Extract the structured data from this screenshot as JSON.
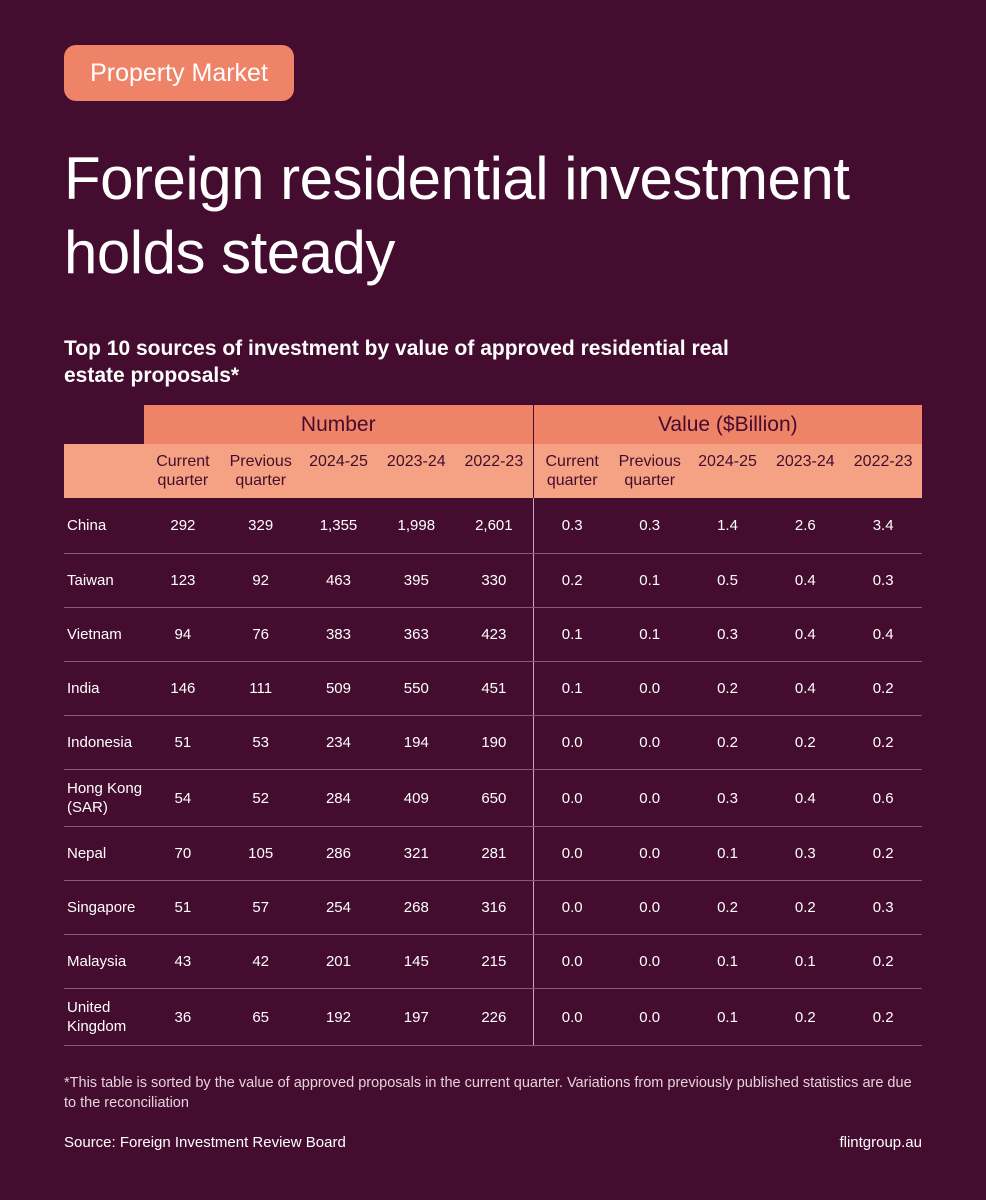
{
  "tag": "Property Market",
  "title": "Foreign residential investment holds steady",
  "subtitle": "Top 10 sources of investment by value of approved residential real estate proposals*",
  "footnote": "*This table is sorted by the value of approved proposals in the current quarter. Variations from previously published statistics are due to the reconciliation",
  "source": "Source: Foreign Investment Review Board",
  "website": "flintgroup.au",
  "colors": {
    "background": "#440c2e",
    "header_group": "#ee8367",
    "header_sub": "#f4a283",
    "tag": "#ee8367"
  },
  "chart_data": {
    "type": "table",
    "groups": [
      {
        "label": "Number",
        "columns": [
          "Current quarter",
          "Previous quarter",
          "2024-25",
          "2023-24",
          "2022-23"
        ]
      },
      {
        "label": "Value ($Billion)",
        "columns": [
          "Current quarter",
          "Previous quarter",
          "2024-25",
          "2023-24",
          "2022-23"
        ]
      }
    ],
    "rows": [
      {
        "country": "China",
        "number": [
          "292",
          "329",
          "1,355",
          "1,998",
          "2,601"
        ],
        "value": [
          "0.3",
          "0.3",
          "1.4",
          "2.6",
          "3.4"
        ]
      },
      {
        "country": "Taiwan",
        "number": [
          "123",
          "92",
          "463",
          "395",
          "330"
        ],
        "value": [
          "0.2",
          "0.1",
          "0.5",
          "0.4",
          "0.3"
        ]
      },
      {
        "country": "Vietnam",
        "number": [
          "94",
          "76",
          "383",
          "363",
          "423"
        ],
        "value": [
          "0.1",
          "0.1",
          "0.3",
          "0.4",
          "0.4"
        ]
      },
      {
        "country": "India",
        "number": [
          "146",
          "111",
          "509",
          "550",
          "451"
        ],
        "value": [
          "0.1",
          "0.0",
          "0.2",
          "0.4",
          "0.2"
        ]
      },
      {
        "country": "Indonesia",
        "number": [
          "51",
          "53",
          "234",
          "194",
          "190"
        ],
        "value": [
          "0.0",
          "0.0",
          "0.2",
          "0.2",
          "0.2"
        ]
      },
      {
        "country": "Hong Kong (SAR)",
        "number": [
          "54",
          "52",
          "284",
          "409",
          "650"
        ],
        "value": [
          "0.0",
          "0.0",
          "0.3",
          "0.4",
          "0.6"
        ]
      },
      {
        "country": "Nepal",
        "number": [
          "70",
          "105",
          "286",
          "321",
          "281"
        ],
        "value": [
          "0.0",
          "0.0",
          "0.1",
          "0.3",
          "0.2"
        ]
      },
      {
        "country": "Singapore",
        "number": [
          "51",
          "57",
          "254",
          "268",
          "316"
        ],
        "value": [
          "0.0",
          "0.0",
          "0.2",
          "0.2",
          "0.3"
        ]
      },
      {
        "country": "Malaysia",
        "number": [
          "43",
          "42",
          "201",
          "145",
          "215"
        ],
        "value": [
          "0.0",
          "0.0",
          "0.1",
          "0.1",
          "0.2"
        ]
      },
      {
        "country": "United Kingdom",
        "number": [
          "36",
          "65",
          "192",
          "197",
          "226"
        ],
        "value": [
          "0.0",
          "0.0",
          "0.1",
          "0.2",
          "0.2"
        ]
      }
    ]
  }
}
